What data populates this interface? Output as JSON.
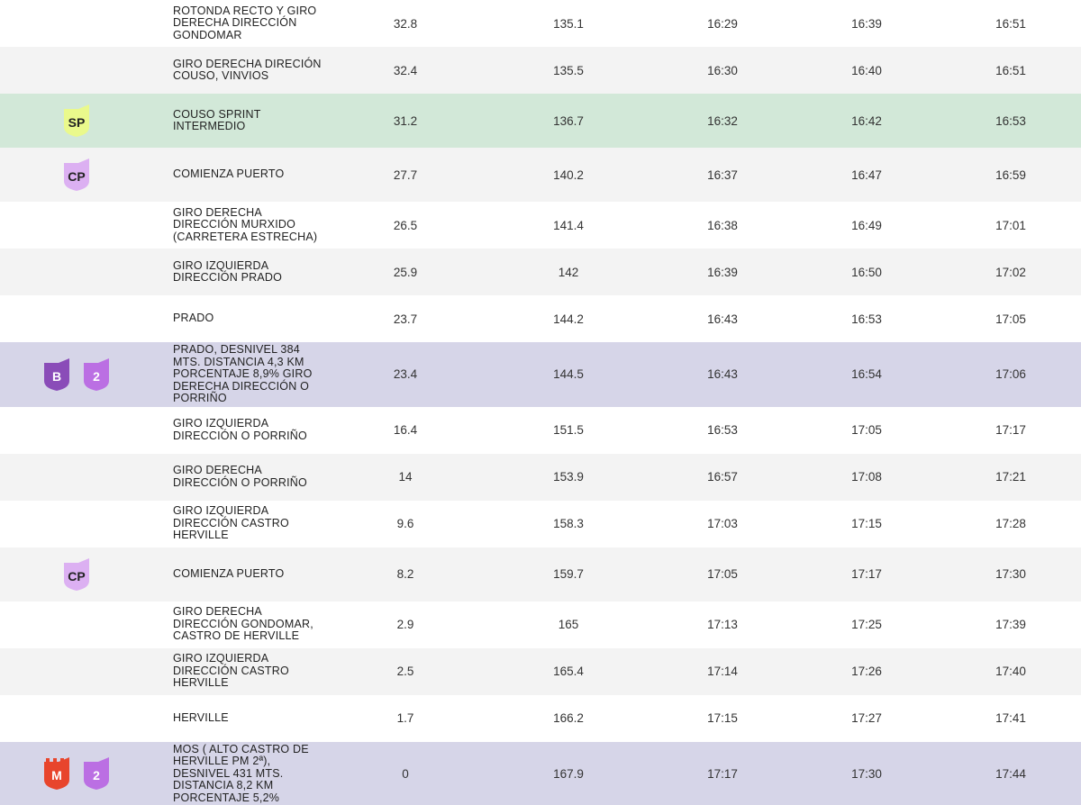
{
  "table": {
    "rows": [
      {
        "background": "#ffffff",
        "badges": [],
        "description": [
          "ROTONDA RECTO Y GIRO",
          "DERECHA DIRECCIÓN",
          "GONDOMAR"
        ],
        "cells": [
          "32.8",
          "135.1",
          "16:29",
          "16:39",
          "16:51"
        ]
      },
      {
        "background": "#f3f3f3",
        "badges": [],
        "description": [
          "GIRO DERECHA DIRECIÓN",
          "COUSO, VINVIOS"
        ],
        "cells": [
          "32.4",
          "135.5",
          "16:30",
          "16:40",
          "16:51"
        ]
      },
      {
        "background": "#d2e8d8",
        "badges": [
          {
            "label": "SP",
            "color": "#eaf98c",
            "text_color": "#222222"
          }
        ],
        "description": [
          "COUSO SPRINT",
          "INTERMEDIO"
        ],
        "cells": [
          "31.2",
          "136.7",
          "16:32",
          "16:42",
          "16:53"
        ]
      },
      {
        "background": "#f3f3f3",
        "badges": [
          {
            "label": "CP",
            "color": "#dcb0f2",
            "text_color": "#222222"
          }
        ],
        "description": [
          "COMIENZA PUERTO"
        ],
        "cells": [
          "27.7",
          "140.2",
          "16:37",
          "16:47",
          "16:59"
        ]
      },
      {
        "background": "#ffffff",
        "badges": [],
        "description": [
          "GIRO DERECHA",
          "DIRECCIÓN MURXIDO",
          "(CARRETERA ESTRECHA)"
        ],
        "cells": [
          "26.5",
          "141.4",
          "16:38",
          "16:49",
          "17:01"
        ]
      },
      {
        "background": "#f3f3f3",
        "badges": [],
        "description": [
          "GIRO IZQUIERDA",
          "DIRECCIÓN PRADO"
        ],
        "cells": [
          "25.9",
          "142",
          "16:39",
          "16:50",
          "17:02"
        ]
      },
      {
        "background": "#ffffff",
        "badges": [],
        "description": [
          "PRADO"
        ],
        "cells": [
          "23.7",
          "144.2",
          "16:43",
          "16:53",
          "17:05"
        ]
      },
      {
        "background": "#d6d5e8",
        "badges": [
          {
            "label": "B",
            "color": "#8a4cb8",
            "text_color": "#ffffff"
          },
          {
            "label": "2",
            "color": "#bb6fe3",
            "text_color": "#ffffff"
          }
        ],
        "description": [
          "PRADO, DESNIVEL 384",
          "MTS. DISTANCIA 4,3 KM",
          "PORCENTAJE 8,9% GIRO",
          "DERECHA DIRECCIÓN O",
          "PORRIÑO"
        ],
        "cells": [
          "23.4",
          "144.5",
          "16:43",
          "16:54",
          "17:06"
        ]
      },
      {
        "background": "#ffffff",
        "badges": [],
        "description": [
          "GIRO IZQUIERDA",
          "DIRECCIÓN O PORRIÑO"
        ],
        "cells": [
          "16.4",
          "151.5",
          "16:53",
          "17:05",
          "17:17"
        ]
      },
      {
        "background": "#f3f3f3",
        "badges": [],
        "description": [
          "GIRO DERECHA",
          "DIRECCIÓN O PORRIÑO"
        ],
        "cells": [
          "14",
          "153.9",
          "16:57",
          "17:08",
          "17:21"
        ]
      },
      {
        "background": "#ffffff",
        "badges": [],
        "description": [
          "GIRO IZQUIERDA",
          "DIRECCIÓN CASTRO",
          "HERVILLE"
        ],
        "cells": [
          "9.6",
          "158.3",
          "17:03",
          "17:15",
          "17:28"
        ]
      },
      {
        "background": "#f3f3f3",
        "badges": [
          {
            "label": "CP",
            "color": "#dcb0f2",
            "text_color": "#222222"
          }
        ],
        "description": [
          "COMIENZA PUERTO"
        ],
        "cells": [
          "8.2",
          "159.7",
          "17:05",
          "17:17",
          "17:30"
        ]
      },
      {
        "background": "#ffffff",
        "badges": [],
        "description": [
          "GIRO DERECHA",
          "DIRECCIÓN GONDOMAR,",
          "CASTRO DE HERVILLE"
        ],
        "cells": [
          "2.9",
          "165",
          "17:13",
          "17:25",
          "17:39"
        ]
      },
      {
        "background": "#f3f3f3",
        "badges": [],
        "description": [
          "GIRO IZQUIERDA",
          "DIRECCIÓN CASTRO",
          "HERVILLE"
        ],
        "cells": [
          "2.5",
          "165.4",
          "17:14",
          "17:26",
          "17:40"
        ]
      },
      {
        "background": "#ffffff",
        "badges": [],
        "description": [
          "HERVILLE"
        ],
        "cells": [
          "1.7",
          "166.2",
          "17:15",
          "17:27",
          "17:41"
        ]
      },
      {
        "background": "#d6d5e8",
        "badges": [
          {
            "label": "M",
            "color": "#e8452c",
            "text_color": "#ffffff"
          },
          {
            "label": "2",
            "color": "#bb6fe3",
            "text_color": "#ffffff"
          }
        ],
        "description": [
          "MOS ( ALTO CASTRO DE",
          "HERVILLE PM 2ª),",
          "DESNIVEL 431 MTS.",
          "DISTANCIA 8,2 KM",
          "PORCENTAJE 5,2%"
        ],
        "cells": [
          "0",
          "167.9",
          "17:17",
          "17:30",
          "17:44"
        ]
      }
    ]
  }
}
